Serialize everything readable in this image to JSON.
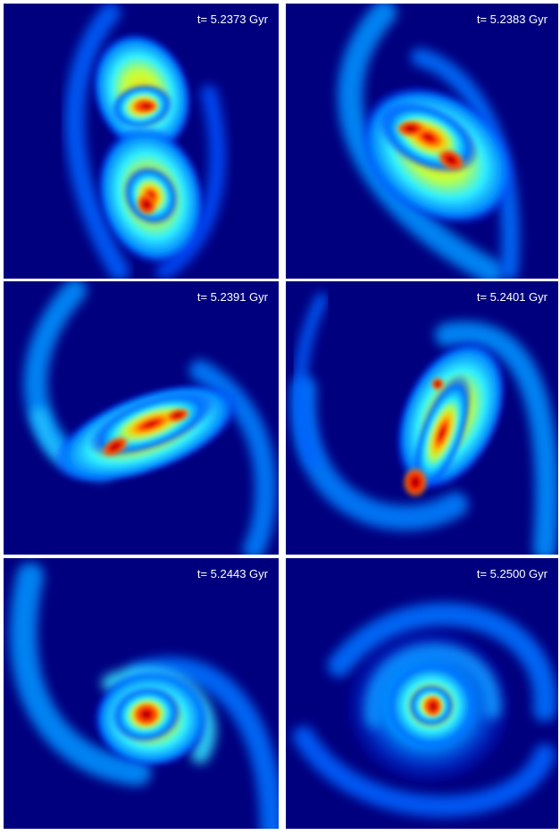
{
  "panels": [
    {
      "label": "t= 5.2373 Gyr"
    },
    {
      "label": "t= 5.2383 Gyr"
    },
    {
      "label": "t= 5.2391 Gyr"
    },
    {
      "label": "t= 5.2401 Gyr"
    },
    {
      "label": "t= 5.2443 Gyr"
    },
    {
      "label": "t= 5.2500 Gyr"
    }
  ]
}
